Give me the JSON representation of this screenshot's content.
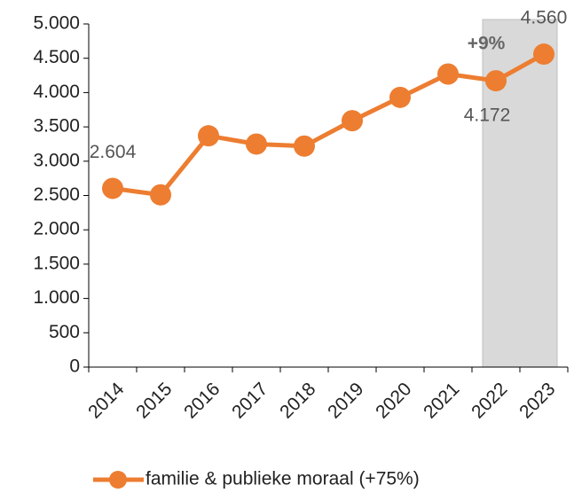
{
  "chart_data": {
    "type": "line",
    "categories": [
      "2014",
      "2015",
      "2016",
      "2017",
      "2018",
      "2019",
      "2020",
      "2021",
      "2022",
      "2023"
    ],
    "series": [
      {
        "name": "familie & publieke moraal (+75%)",
        "color": "#ed7d31",
        "values": [
          2604,
          2510,
          3370,
          3250,
          3220,
          3590,
          3930,
          4270,
          4172,
          4560
        ],
        "value_labels": [
          "2.604",
          null,
          null,
          null,
          null,
          null,
          null,
          null,
          "4.172",
          "4.560"
        ]
      }
    ],
    "annotation": "+9%",
    "ylim": [
      0,
      5000
    ],
    "yticks": [
      0,
      {
        "value": 500,
        "label": "500"
      },
      {
        "value": 1000,
        "label": "1.000"
      },
      {
        "value": 1500,
        "label": "1.500"
      },
      {
        "value": 2000,
        "label": "2.000"
      },
      {
        "value": 2500,
        "label": "2.500"
      },
      {
        "value": 3000,
        "label": "3.000"
      },
      {
        "value": 3500,
        "label": "3.500"
      },
      {
        "value": 4000,
        "label": "4.000"
      },
      {
        "value": 4500,
        "label": "4.500"
      },
      {
        "value": 5000,
        "label": "5.000"
      }
    ],
    "legend": "bottom"
  }
}
